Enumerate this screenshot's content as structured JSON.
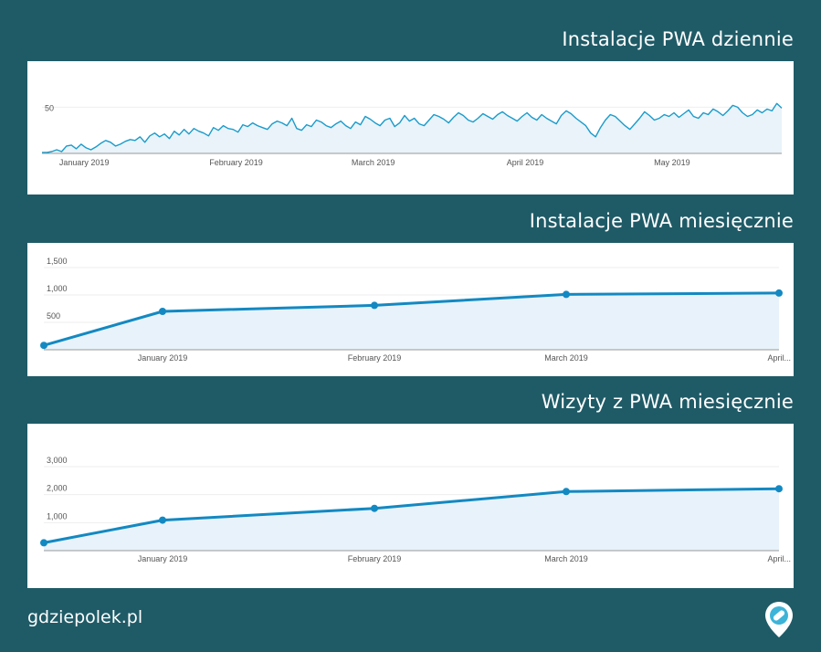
{
  "charts": [
    {
      "title": "Instalacje PWA dziennie",
      "type": "area",
      "x_ticks": [
        "January 2019",
        "February 2019",
        "March 2019",
        "April 2019",
        "May 2019"
      ],
      "y_ticks": [
        "50"
      ],
      "ylim": [
        0,
        80
      ],
      "x_start": "2018-12-26",
      "values": [
        1,
        1,
        2,
        4,
        2,
        8,
        9,
        5,
        10,
        6,
        4,
        7,
        11,
        14,
        12,
        8,
        10,
        13,
        15,
        14,
        18,
        12,
        19,
        22,
        18,
        21,
        16,
        24,
        20,
        26,
        21,
        27,
        24,
        22,
        19,
        28,
        25,
        30,
        27,
        26,
        23,
        31,
        29,
        33,
        30,
        28,
        26,
        32,
        35,
        33,
        30,
        38,
        27,
        25,
        31,
        29,
        36,
        34,
        30,
        28,
        32,
        35,
        30,
        27,
        34,
        31,
        40,
        37,
        33,
        30,
        36,
        38,
        29,
        33,
        41,
        35,
        38,
        32,
        30,
        36,
        42,
        40,
        37,
        33,
        39,
        44,
        41,
        36,
        34,
        38,
        43,
        40,
        37,
        42,
        45,
        41,
        38,
        35,
        40,
        44,
        39,
        36,
        42,
        38,
        35,
        32,
        41,
        46,
        43,
        38,
        34,
        30,
        22,
        18,
        28,
        36,
        42,
        40,
        35,
        30,
        26,
        32,
        38,
        45,
        41,
        36,
        38,
        42,
        40,
        44,
        39,
        43,
        47,
        40,
        38,
        44,
        42,
        48,
        45,
        41,
        46,
        52,
        50,
        44,
        40,
        42,
        47,
        44,
        48,
        46,
        54,
        49
      ],
      "colors": {
        "line": "#1a9bcb",
        "fill": "#e9f3f9"
      }
    },
    {
      "title": "Instalacje PWA miesięcznie",
      "type": "area",
      "categories": [
        "",
        "January 2019",
        "February 2019",
        "March 2019",
        "April..."
      ],
      "y_ticks": [
        "1,500",
        "1,000",
        "500"
      ],
      "ylim": [
        0,
        1500
      ],
      "values": [
        80,
        700,
        810,
        1010,
        1035
      ],
      "colors": {
        "line": "#1389c2",
        "fill": "#e8f2fa"
      }
    },
    {
      "title": "Wizyty z PWA miesięcznie",
      "type": "area",
      "categories": [
        "",
        "January 2019",
        "February 2019",
        "March 2019",
        "April..."
      ],
      "y_ticks": [
        "3,000",
        "2,000",
        "1,000"
      ],
      "ylim": [
        0,
        3000
      ],
      "values": [
        280,
        1090,
        1510,
        2110,
        2210
      ],
      "colors": {
        "line": "#1389c2",
        "fill": "#e8f2fa"
      }
    }
  ],
  "footer": {
    "site": "gdziepolek.pl"
  },
  "logo": {
    "icon": "pill-pin-icon"
  }
}
